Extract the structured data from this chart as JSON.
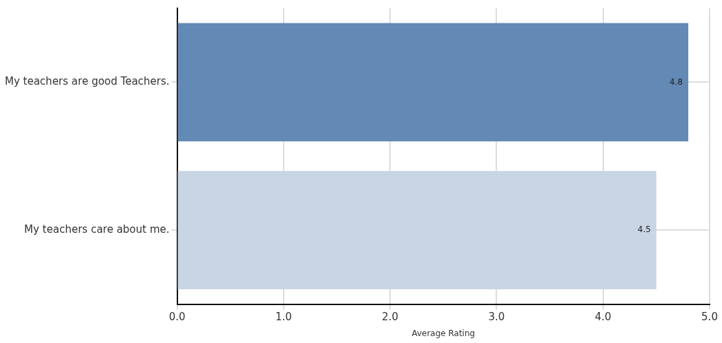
{
  "chart_data": {
    "type": "bar",
    "orientation": "horizontal",
    "categories": [
      "My teachers are good Teachers.",
      "My teachers care about me."
    ],
    "values": [
      4.8,
      4.5
    ],
    "colors": [
      "#6389b5",
      "#c8d5e5"
    ],
    "xlim": [
      0,
      5
    ],
    "xticks": [
      {
        "value": 0,
        "label": "0.0"
      },
      {
        "value": 1,
        "label": "1.0"
      },
      {
        "value": 2,
        "label": "2.0"
      },
      {
        "value": 3,
        "label": "3.0"
      },
      {
        "value": 4,
        "label": "4.0"
      },
      {
        "value": 5,
        "label": "5.0"
      }
    ],
    "xlabel": "Average Rating",
    "grid": true,
    "data_labels": true,
    "legend": false
  }
}
